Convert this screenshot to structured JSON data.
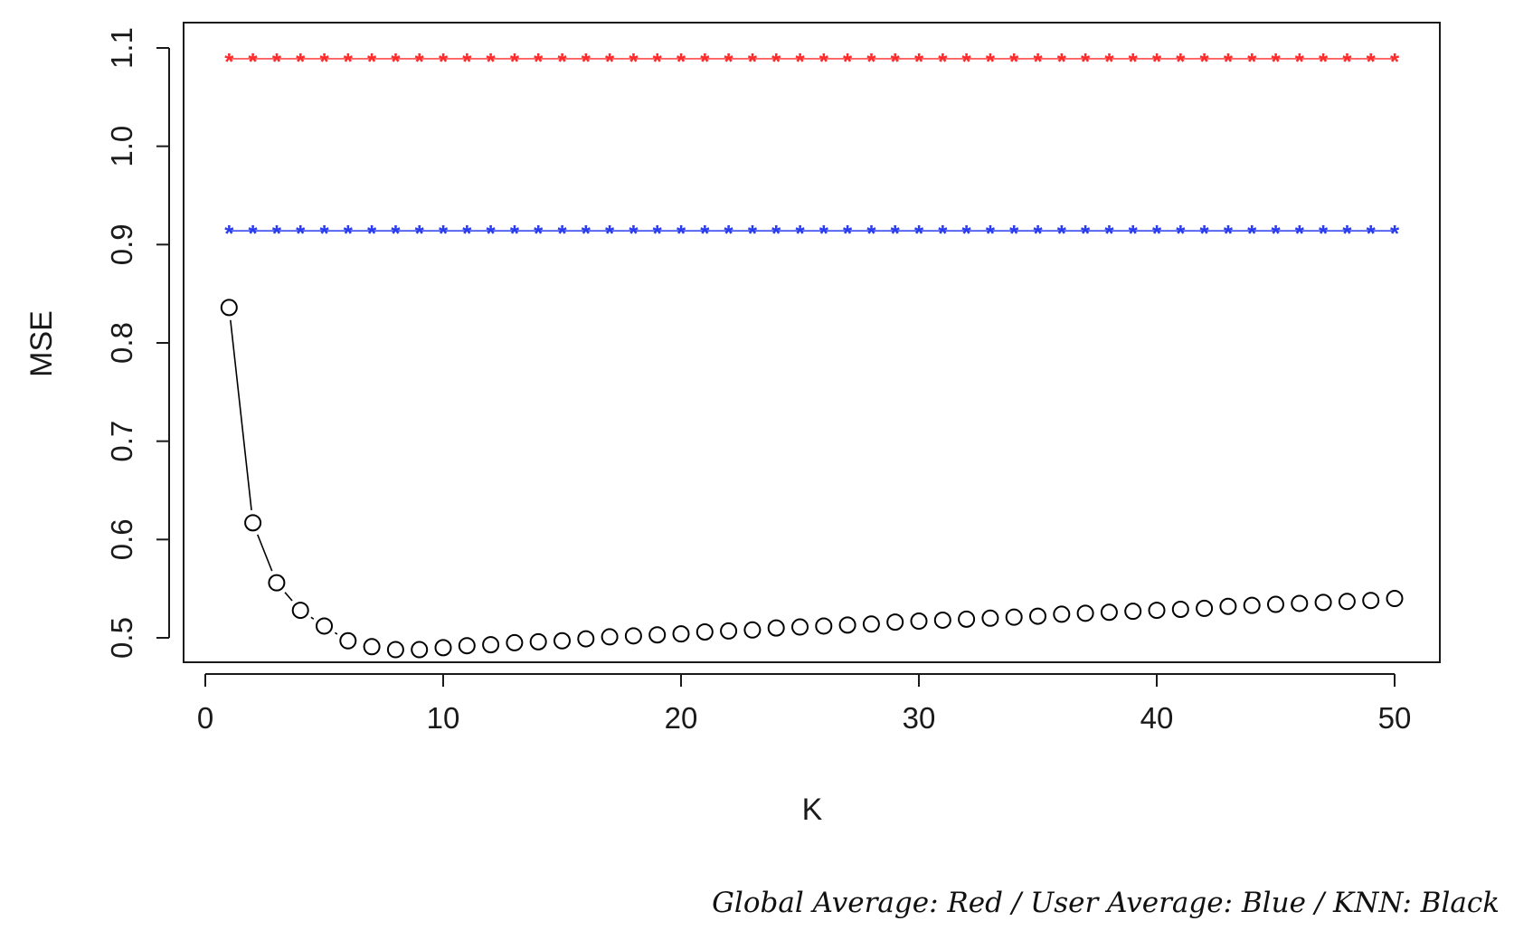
{
  "caption": "Global Average: Red / User Average: Blue / KNN: Black",
  "chart_data": {
    "type": "line",
    "title": "",
    "xlabel": "K",
    "ylabel": "MSE",
    "xlim": [
      0,
      50
    ],
    "ylim": [
      0.5,
      1.1
    ],
    "x_ticks": [
      0,
      10,
      20,
      30,
      40,
      50
    ],
    "x_tick_labels": [
      "0",
      "10",
      "20",
      "30",
      "40",
      "50"
    ],
    "y_ticks": [
      0.5,
      0.6,
      0.7,
      0.8,
      0.9,
      1.0,
      1.1
    ],
    "y_tick_labels": [
      "0.5",
      "0.6",
      "0.7",
      "0.8",
      "0.9",
      "1.0",
      "1.1"
    ],
    "grid": false,
    "x": [
      1,
      2,
      3,
      4,
      5,
      6,
      7,
      8,
      9,
      10,
      11,
      12,
      13,
      14,
      15,
      16,
      17,
      18,
      19,
      20,
      21,
      22,
      23,
      24,
      25,
      26,
      27,
      28,
      29,
      30,
      31,
      32,
      33,
      34,
      35,
      36,
      37,
      38,
      39,
      40,
      41,
      42,
      43,
      44,
      45,
      46,
      47,
      48,
      49,
      50
    ],
    "series": [
      {
        "key": "global",
        "color": "#ff2a2a",
        "marker": "asterisk",
        "values": [
          1.089,
          1.089,
          1.089,
          1.089,
          1.089,
          1.089,
          1.089,
          1.089,
          1.089,
          1.089,
          1.089,
          1.089,
          1.089,
          1.089,
          1.089,
          1.089,
          1.089,
          1.089,
          1.089,
          1.089,
          1.089,
          1.089,
          1.089,
          1.089,
          1.089,
          1.089,
          1.089,
          1.089,
          1.089,
          1.089,
          1.089,
          1.089,
          1.089,
          1.089,
          1.089,
          1.089,
          1.089,
          1.089,
          1.089,
          1.089,
          1.089,
          1.089,
          1.089,
          1.089,
          1.089,
          1.089,
          1.089,
          1.089,
          1.089,
          1.089
        ]
      },
      {
        "key": "user",
        "color": "#2a3cf0",
        "marker": "asterisk",
        "values": [
          0.914,
          0.914,
          0.914,
          0.914,
          0.914,
          0.914,
          0.914,
          0.914,
          0.914,
          0.914,
          0.914,
          0.914,
          0.914,
          0.914,
          0.914,
          0.914,
          0.914,
          0.914,
          0.914,
          0.914,
          0.914,
          0.914,
          0.914,
          0.914,
          0.914,
          0.914,
          0.914,
          0.914,
          0.914,
          0.914,
          0.914,
          0.914,
          0.914,
          0.914,
          0.914,
          0.914,
          0.914,
          0.914,
          0.914,
          0.914,
          0.914,
          0.914,
          0.914,
          0.914,
          0.914,
          0.914,
          0.914,
          0.914,
          0.914,
          0.914
        ]
      },
      {
        "key": "knn",
        "color": "#000000",
        "marker": "circle",
        "values": [
          0.836,
          0.617,
          0.556,
          0.528,
          0.512,
          0.497,
          0.491,
          0.488,
          0.488,
          0.49,
          0.492,
          0.493,
          0.495,
          0.496,
          0.497,
          0.499,
          0.501,
          0.502,
          0.503,
          0.504,
          0.506,
          0.507,
          0.508,
          0.51,
          0.511,
          0.512,
          0.513,
          0.514,
          0.516,
          0.517,
          0.518,
          0.519,
          0.52,
          0.521,
          0.522,
          0.524,
          0.525,
          0.526,
          0.527,
          0.528,
          0.529,
          0.53,
          0.532,
          0.533,
          0.534,
          0.535,
          0.536,
          0.537,
          0.538,
          0.54
        ]
      }
    ]
  }
}
